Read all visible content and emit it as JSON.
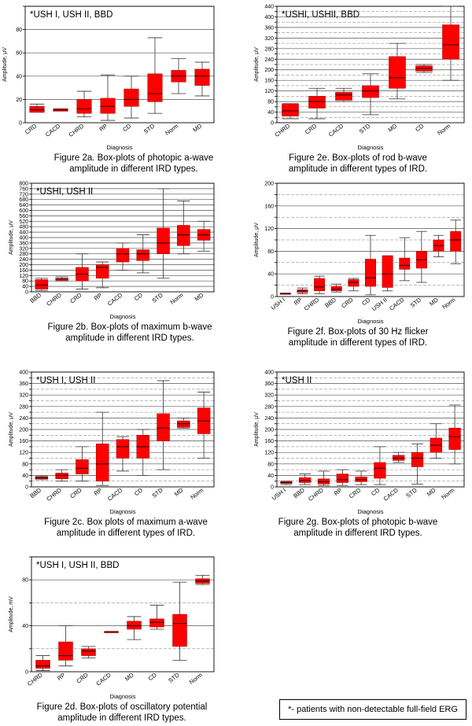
{
  "footnote": "*- patients with non-detectable full-field ERG",
  "chart_data": [
    {
      "id": "2a",
      "type": "box",
      "inset": "*USH I, USH II, BBD",
      "ylabel": "Amplitude, μV",
      "xlabel": "Diagnosis",
      "ylim": [
        0,
        100
      ],
      "yticks": [
        0,
        20,
        40,
        60,
        80,
        100
      ],
      "ytick_labels": [
        "0",
        "20",
        "40",
        "60",
        "80",
        ""
      ],
      "caption": [
        "Figure 2a. Box-plots of photopic a-wave",
        "amplitude in different IRD types."
      ],
      "categories": [
        "CRD",
        "CACD",
        "CHRD",
        "RP",
        "CD",
        "STD",
        "Norm",
        "MD"
      ],
      "boxes": [
        {
          "min": 9,
          "q1": 9,
          "median": 11,
          "q3": 14,
          "max": 16
        },
        {
          "min": 10,
          "q1": 10,
          "median": 11,
          "q3": 12,
          "max": 12
        },
        {
          "min": 5,
          "q1": 8,
          "median": 12,
          "q3": 20,
          "max": 27
        },
        {
          "min": 2,
          "q1": 8,
          "median": 14,
          "q3": 21,
          "max": 41
        },
        {
          "min": 4,
          "q1": 14,
          "median": 20,
          "q3": 29,
          "max": 40
        },
        {
          "min": 8,
          "q1": 18,
          "median": 25,
          "q3": 42,
          "max": 73
        },
        {
          "min": 25,
          "q1": 35,
          "median": 40,
          "q3": 45,
          "max": 55
        },
        {
          "min": 23,
          "q1": 32,
          "median": 40,
          "q3": 46,
          "max": 52
        }
      ]
    },
    {
      "id": "2e",
      "type": "box",
      "inset": "*USHI, USHII, BBD",
      "ylabel": "Amplitude, μV",
      "xlabel": "Diagnosis",
      "ylim": [
        0,
        440
      ],
      "yticks": [
        0,
        20,
        40,
        60,
        80,
        100,
        120,
        140,
        160,
        180,
        200,
        220,
        240,
        260,
        280,
        300,
        320,
        340,
        360,
        380,
        400,
        420,
        440
      ],
      "ytick_labels": [
        "0",
        "",
        "40",
        "",
        "80",
        "",
        "120",
        "",
        "160",
        "",
        "200",
        "",
        "240",
        "",
        "280",
        "",
        "320",
        "",
        "360",
        "",
        "400",
        "",
        "440"
      ],
      "caption": [
        "Figure 2e. Box-plots of  rod b-wave",
        "amplitude in different types of IRD."
      ],
      "categories": [
        "CHRD",
        "CRD",
        "CACD",
        "STD",
        "MD",
        "CD",
        "Norm"
      ],
      "boxes": [
        {
          "min": 15,
          "q1": 25,
          "median": 45,
          "q3": 70,
          "max": 72
        },
        {
          "min": 15,
          "q1": 55,
          "median": 80,
          "q3": 100,
          "max": 130
        },
        {
          "min": 80,
          "q1": 85,
          "median": 105,
          "q3": 115,
          "max": 130
        },
        {
          "min": 30,
          "q1": 95,
          "median": 120,
          "q3": 140,
          "max": 185
        },
        {
          "min": 90,
          "q1": 130,
          "median": 170,
          "q3": 250,
          "max": 300
        },
        {
          "min": 190,
          "q1": 195,
          "median": 205,
          "q3": 215,
          "max": 220
        },
        {
          "min": 160,
          "q1": 240,
          "median": 295,
          "q3": 370,
          "max": 440
        }
      ]
    },
    {
      "id": "2b",
      "type": "box",
      "inset": "*USHI, USH II",
      "ylabel": "Amplitude, μV",
      "xlabel": "Diagnosis",
      "ylim": [
        0,
        800
      ],
      "yticks": [
        0,
        40,
        80,
        120,
        160,
        200,
        240,
        280,
        320,
        360,
        400,
        440,
        480,
        520,
        560,
        600,
        640,
        680,
        720,
        760,
        800
      ],
      "ytick_labels": [
        "0",
        "40",
        "80",
        "120",
        "160",
        "200",
        "240",
        "280",
        "320",
        "360",
        "400",
        "440",
        "480",
        "520",
        "560",
        "600",
        "640",
        "680",
        "720",
        "760",
        "800"
      ],
      "caption": [
        "Figure 2b. Box-plots of maximum b-wave",
        "amplitude in different IRD types."
      ],
      "categories": [
        "BBD",
        "CHRD",
        "CRD",
        "RP",
        "CACD",
        "CD",
        "STD",
        "Norm",
        "MD"
      ],
      "boxes": [
        {
          "min": 10,
          "q1": 20,
          "median": 50,
          "q3": 90,
          "max": 100
        },
        {
          "min": 80,
          "q1": 85,
          "median": 95,
          "q3": 100,
          "max": 110
        },
        {
          "min": 20,
          "q1": 80,
          "median": 130,
          "q3": 180,
          "max": 280
        },
        {
          "min": 30,
          "q1": 100,
          "median": 180,
          "q3": 200,
          "max": 220
        },
        {
          "min": 160,
          "q1": 220,
          "median": 280,
          "q3": 320,
          "max": 360
        },
        {
          "min": 140,
          "q1": 230,
          "median": 280,
          "q3": 310,
          "max": 420
        },
        {
          "min": 100,
          "q1": 280,
          "median": 360,
          "q3": 470,
          "max": 760
        },
        {
          "min": 280,
          "q1": 340,
          "median": 420,
          "q3": 490,
          "max": 670
        },
        {
          "min": 300,
          "q1": 380,
          "median": 420,
          "q3": 460,
          "max": 520
        }
      ]
    },
    {
      "id": "2f",
      "type": "box",
      "inset": "",
      "ylabel": "Amplitude, μV",
      "xlabel": "Diagnosis",
      "ylim": [
        0,
        200
      ],
      "yticks": [
        0,
        20,
        40,
        60,
        80,
        100,
        120,
        140,
        160,
        180,
        200
      ],
      "ytick_labels": [
        "0",
        "",
        "40",
        "",
        "80",
        "",
        "120",
        "",
        "160",
        "",
        "200"
      ],
      "caption": [
        "Figure 2f. Box-plots of 30 Hz flicker",
        "amplitude in different types of IRD."
      ],
      "categories": [
        "USH I",
        "RP",
        "CHRD",
        "BBD",
        "CRD",
        "CD",
        "USH II",
        "CACD",
        "STD",
        "MD",
        "Norm"
      ],
      "boxes": [
        {
          "min": 4,
          "q1": 4,
          "median": 5,
          "q3": 6,
          "max": 6
        },
        {
          "min": 5,
          "q1": 7,
          "median": 10,
          "q3": 12,
          "max": 15
        },
        {
          "min": 5,
          "q1": 10,
          "median": 17,
          "q3": 32,
          "max": 36
        },
        {
          "min": 8,
          "q1": 10,
          "median": 13,
          "q3": 18,
          "max": 22
        },
        {
          "min": 10,
          "q1": 18,
          "median": 25,
          "q3": 30,
          "max": 32
        },
        {
          "min": 3,
          "q1": 18,
          "median": 33,
          "q3": 66,
          "max": 108
        },
        {
          "min": 10,
          "q1": 16,
          "median": 40,
          "q3": 72,
          "max": 72
        },
        {
          "min": 28,
          "q1": 48,
          "median": 55,
          "q3": 68,
          "max": 104
        },
        {
          "min": 25,
          "q1": 50,
          "median": 65,
          "q3": 80,
          "max": 115
        },
        {
          "min": 70,
          "q1": 80,
          "median": 90,
          "q3": 100,
          "max": 108
        },
        {
          "min": 58,
          "q1": 80,
          "median": 100,
          "q3": 115,
          "max": 135
        }
      ]
    },
    {
      "id": "2c",
      "type": "box",
      "inset": "*USH I, USH II",
      "ylabel": "Amplitude, μV",
      "xlabel": "Diagnosis",
      "ylim": [
        0,
        400
      ],
      "yticks": [
        0,
        20,
        40,
        60,
        80,
        100,
        120,
        140,
        160,
        180,
        200,
        220,
        240,
        260,
        280,
        300,
        320,
        340,
        360,
        380,
        400
      ],
      "ytick_labels": [
        "0",
        "",
        "40",
        "",
        "80",
        "",
        "120",
        "",
        "160",
        "",
        "200",
        "",
        "240",
        "",
        "280",
        "",
        "320",
        "",
        "360",
        "",
        "400"
      ],
      "caption": [
        "Figure 2c. Box plots of maximum a-wave",
        "amplitude in different types of IRD."
      ],
      "categories": [
        "BBD",
        "CHRD",
        "CRD",
        "RP",
        "CACD",
        "CD",
        "STD",
        "MD",
        "Norm"
      ],
      "boxes": [
        {
          "min": 25,
          "q1": 28,
          "median": 32,
          "q3": 35,
          "max": 38
        },
        {
          "min": 20,
          "q1": 28,
          "median": 40,
          "q3": 48,
          "max": 60
        },
        {
          "min": 20,
          "q1": 45,
          "median": 65,
          "q3": 95,
          "max": 140
        },
        {
          "min": 5,
          "q1": 20,
          "median": 80,
          "q3": 150,
          "max": 260
        },
        {
          "min": 55,
          "q1": 100,
          "median": 140,
          "q3": 165,
          "max": 175
        },
        {
          "min": 40,
          "q1": 100,
          "median": 140,
          "q3": 180,
          "max": 200
        },
        {
          "min": 60,
          "q1": 160,
          "median": 205,
          "q3": 255,
          "max": 370
        },
        {
          "min": 205,
          "q1": 208,
          "median": 220,
          "q3": 230,
          "max": 240
        },
        {
          "min": 100,
          "q1": 185,
          "median": 230,
          "q3": 275,
          "max": 330
        }
      ]
    },
    {
      "id": "2g",
      "type": "box",
      "inset": "*USH II",
      "ylabel": "Amplitude, μV",
      "xlabel": "Diagnosis",
      "ylim": [
        0,
        400
      ],
      "yticks": [
        0,
        20,
        40,
        60,
        80,
        100,
        120,
        140,
        160,
        180,
        200,
        220,
        240,
        260,
        280,
        300,
        320,
        340,
        360,
        380,
        400
      ],
      "ytick_labels": [
        "0",
        "",
        "40",
        "",
        "80",
        "",
        "120",
        "",
        "160",
        "",
        "200",
        "",
        "240",
        "",
        "280",
        "",
        "320",
        "",
        "360",
        "",
        "400"
      ],
      "caption": [
        "Figure 2g. Box-plots of photopic b-wave",
        "amplitude in different IRD types."
      ],
      "categories": [
        "USH I",
        "BBD",
        "CHRD",
        "RP",
        "CRD",
        "CD",
        "CACD",
        "STD",
        "MD",
        "Norm"
      ],
      "boxes": [
        {
          "min": 8,
          "q1": 12,
          "median": 15,
          "q3": 18,
          "max": 20
        },
        {
          "min": 8,
          "q1": 15,
          "median": 22,
          "q3": 32,
          "max": 45
        },
        {
          "min": 5,
          "q1": 10,
          "median": 18,
          "q3": 28,
          "max": 55
        },
        {
          "min": 5,
          "q1": 15,
          "median": 25,
          "q3": 45,
          "max": 60
        },
        {
          "min": 8,
          "q1": 18,
          "median": 25,
          "q3": 35,
          "max": 55
        },
        {
          "min": 8,
          "q1": 30,
          "median": 65,
          "q3": 85,
          "max": 140
        },
        {
          "min": 85,
          "q1": 92,
          "median": 100,
          "q3": 110,
          "max": 120
        },
        {
          "min": 10,
          "q1": 70,
          "median": 100,
          "q3": 120,
          "max": 150
        },
        {
          "min": 100,
          "q1": 120,
          "median": 145,
          "q3": 170,
          "max": 220
        },
        {
          "min": 80,
          "q1": 130,
          "median": 175,
          "q3": 205,
          "max": 285
        }
      ]
    },
    {
      "id": "2d",
      "type": "box",
      "inset": "*USH I, USH II, BBD",
      "ylabel": "Amplitude, mV",
      "xlabel": "Diagnosis",
      "ylim": [
        0,
        100
      ],
      "yticks": [
        0,
        20,
        40,
        60,
        80,
        100
      ],
      "ytick_labels": [
        "0",
        "",
        "40",
        "",
        "80",
        ""
      ],
      "caption": [
        "Figure 2d. Box-plots of oscillatory potential",
        "amplitude in different IRD types."
      ],
      "categories": [
        "CHRD",
        "RP",
        "CRD",
        "CACD",
        "MD",
        "CD",
        "STD",
        "Norm"
      ],
      "boxes": [
        {
          "min": 1,
          "q1": 3,
          "median": 5,
          "q3": 10,
          "max": 14
        },
        {
          "min": 5,
          "q1": 10,
          "median": 14,
          "q3": 26,
          "max": 40
        },
        {
          "min": 12,
          "q1": 14,
          "median": 18,
          "q3": 20,
          "max": 22
        },
        {
          "min": 34,
          "q1": 34,
          "median": 35,
          "q3": 35,
          "max": 35
        },
        {
          "min": 28,
          "q1": 37,
          "median": 40,
          "q3": 44,
          "max": 48
        },
        {
          "min": 37,
          "q1": 39,
          "median": 43,
          "q3": 46,
          "max": 58
        },
        {
          "min": 10,
          "q1": 22,
          "median": 42,
          "q3": 50,
          "max": 78
        },
        {
          "min": 76,
          "q1": 77,
          "median": 79,
          "q3": 81,
          "max": 84
        }
      ]
    }
  ]
}
